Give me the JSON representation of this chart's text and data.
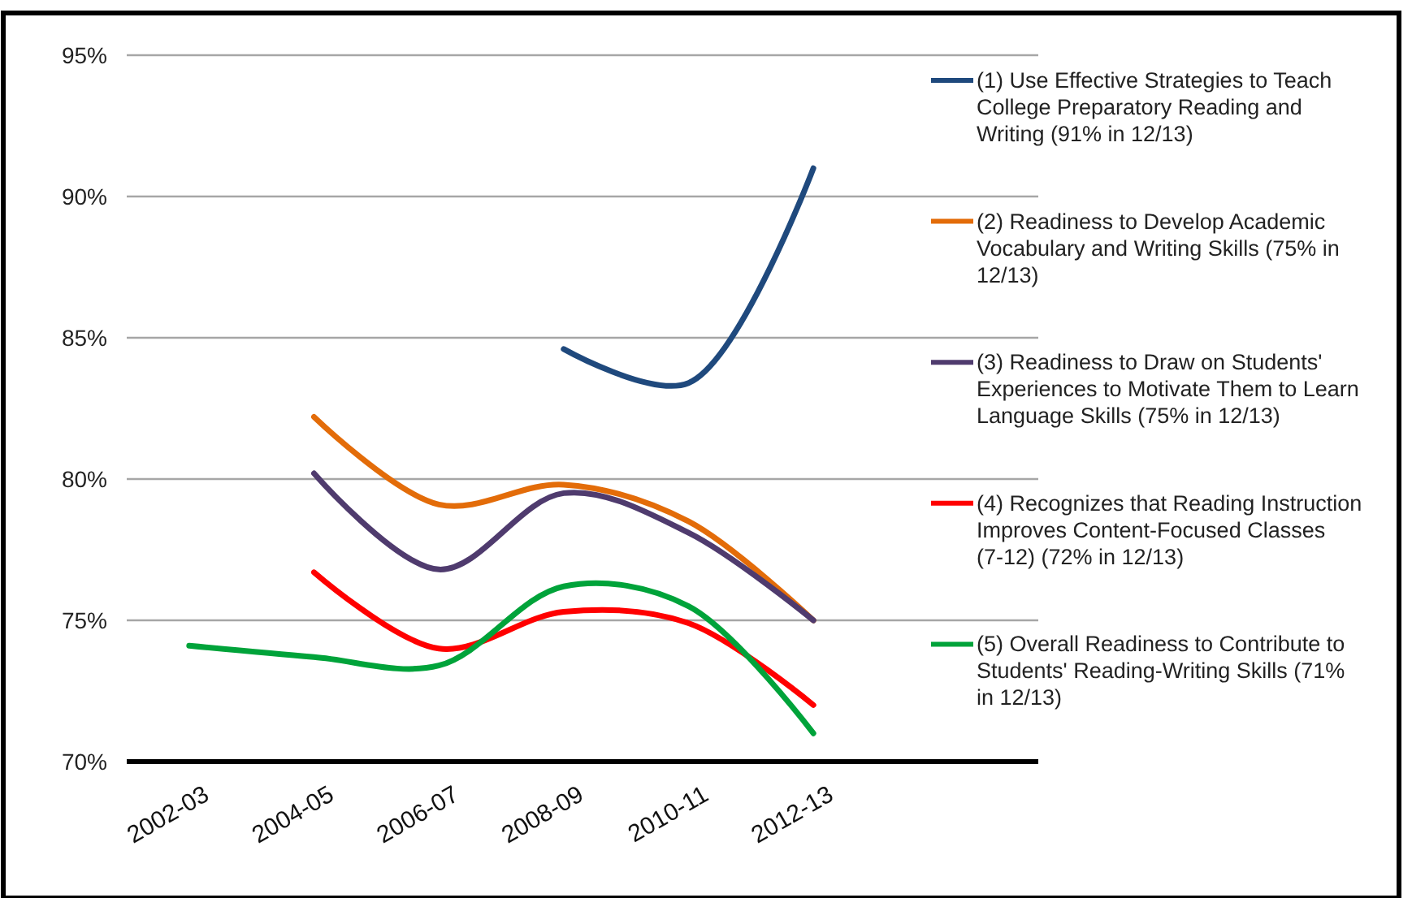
{
  "chart_data": {
    "type": "line",
    "categories": [
      "2002-03",
      "2004-05",
      "2006-07",
      "2008-09",
      "2010-11",
      "2012-13"
    ],
    "ylim": [
      70,
      95
    ],
    "yticks": [
      {
        "value": 70,
        "label": "70%"
      },
      {
        "value": 75,
        "label": "75%"
      },
      {
        "value": 80,
        "label": "80%"
      },
      {
        "value": 85,
        "label": "85%"
      },
      {
        "value": 90,
        "label": "90%"
      },
      {
        "value": 95,
        "label": "95%"
      }
    ],
    "grid": "y",
    "legend": "right",
    "marker": "none",
    "line_style": "solid",
    "series": [
      {
        "name": "(1) Use Effective Strategies to Teach College Preparatory Reading and Writing (91% in 12/13)",
        "color": "#1f497d",
        "values": [
          null,
          null,
          null,
          84.6,
          83.4,
          91
        ]
      },
      {
        "name": "(2) Readiness to Develop Academic Vocabulary and Writing Skills (75% in 12/13)",
        "color": "#e36c09",
        "values": [
          null,
          82.2,
          79.1,
          79.8,
          78.5,
          75
        ]
      },
      {
        "name": "(3) Readiness to Draw on Students' Experiences to Motivate Them to Learn Language Skills (75% in 12/13)",
        "color": "#4f3b6e",
        "values": [
          null,
          80.2,
          76.8,
          79.5,
          78.1,
          75
        ]
      },
      {
        "name": "(4) Recognizes that Reading Instruction Improves Content-Focused Classes (7-12) (72% in 12/13)",
        "color": "#ff0000",
        "values": [
          null,
          76.7,
          74.0,
          75.3,
          74.9,
          72
        ]
      },
      {
        "name": "(5) Overall Readiness to Contribute to Students' Reading-Writing Skills (71% in 12/13)",
        "color": "#00a33a",
        "values": [
          74.1,
          73.7,
          73.4,
          76.2,
          75.5,
          71
        ]
      }
    ]
  }
}
